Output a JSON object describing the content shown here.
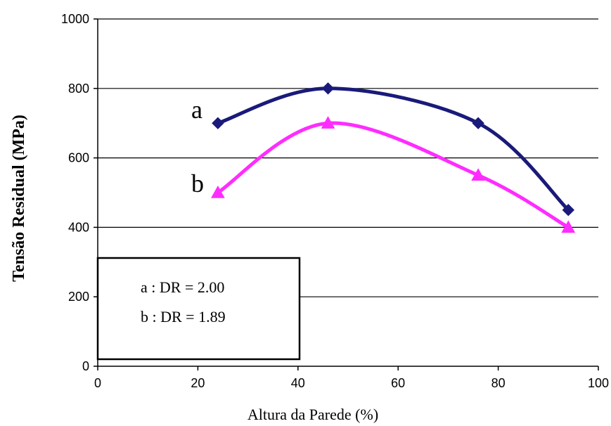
{
  "chart_data": {
    "type": "line",
    "xlabel": "Altura da Parede (%)",
    "ylabel": "Tensão Residual (MPa)",
    "xlim": [
      0,
      100
    ],
    "ylim": [
      0,
      1000
    ],
    "xticks": [
      "0",
      "20",
      "40",
      "60",
      "80",
      "100"
    ],
    "yticks": [
      "0",
      "200",
      "400",
      "600",
      "800",
      "1000"
    ],
    "grid": "horizontal",
    "legend_position": "bottom-left",
    "series": [
      {
        "name": "a",
        "legend": "a : DR = 2.00",
        "color": "#1a1a7a",
        "marker": "diamond",
        "points": [
          {
            "x": 24,
            "y": 700
          },
          {
            "x": 46,
            "y": 800
          },
          {
            "x": 76,
            "y": 700
          },
          {
            "x": 94,
            "y": 450
          }
        ]
      },
      {
        "name": "b",
        "legend": "b : DR = 1.89",
        "color": "#ff2cff",
        "marker": "triangle",
        "points": [
          {
            "x": 24,
            "y": 500
          },
          {
            "x": 46,
            "y": 700
          },
          {
            "x": 76,
            "y": 550
          },
          {
            "x": 94,
            "y": 400
          }
        ]
      }
    ]
  }
}
